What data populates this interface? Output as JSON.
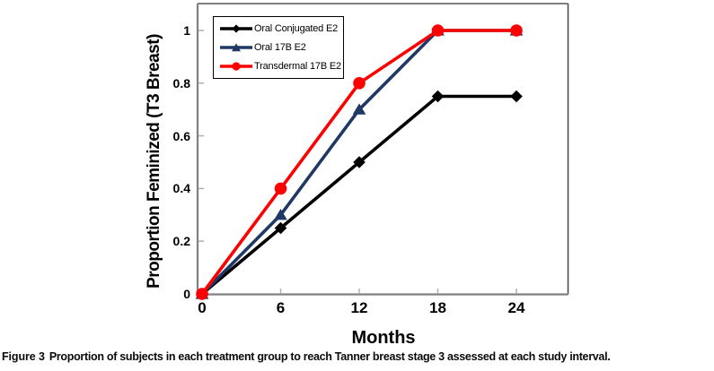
{
  "figure": {
    "caption_prefix": "Figure 3",
    "caption_text": "Proportion of subjects in each treatment group to reach Tanner breast stage 3 assessed at each study interval."
  },
  "chart_data": {
    "type": "line",
    "title": "",
    "xlabel": "Months",
    "ylabel": "Proportion Feminized (T3 Breast)",
    "x": [
      0,
      6,
      12,
      18,
      24
    ],
    "xtick_labels": [
      "0",
      "6",
      "12",
      "18",
      "24"
    ],
    "yticks": [
      0,
      0.2,
      0.4,
      0.6,
      0.8,
      1
    ],
    "ytick_labels": [
      "0",
      "0.2",
      "0.4",
      "0.6",
      "0.8",
      "1"
    ],
    "xlim": [
      0,
      28
    ],
    "ylim": [
      0,
      1.1
    ],
    "grid": false,
    "legend_position": "top-left-inside",
    "axis_color": "#808080",
    "tick_color": "#b0b0b0",
    "series": [
      {
        "name": "Oral Conjugated E2",
        "color": "#000000",
        "marker": "diamond",
        "values": [
          0,
          0.25,
          0.5,
          0.75,
          0.75
        ]
      },
      {
        "name": "Oral 17B E2",
        "color": "#1F3864",
        "marker": "triangle",
        "values": [
          0,
          0.3,
          0.7,
          1,
          1
        ]
      },
      {
        "name": "Transdermal 17B E2",
        "color": "#FF0000",
        "marker": "circle",
        "values": [
          0,
          0.4,
          0.8,
          1,
          1
        ]
      }
    ]
  }
}
